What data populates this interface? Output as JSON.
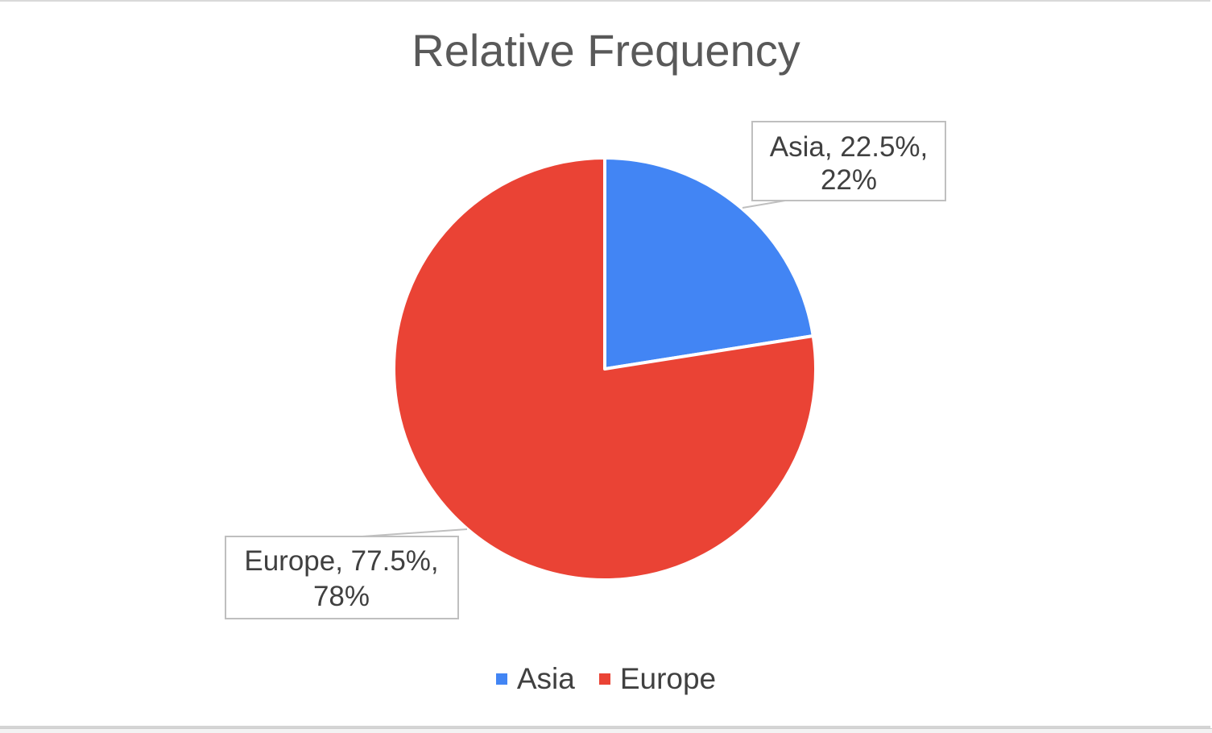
{
  "chart_data": {
    "type": "pie",
    "title": "Relative Frequency",
    "categories": [
      "Asia",
      "Europe"
    ],
    "values": [
      22.5,
      77.5
    ],
    "colors": [
      "#4285f4",
      "#ea4335"
    ],
    "data_labels": [
      [
        "Asia, 22.5%,",
        "22%"
      ],
      [
        "Europe, 77.5%,",
        "78%"
      ]
    ],
    "legend": {
      "position": "bottom",
      "items": [
        {
          "label": "Asia",
          "color": "#4285f4"
        },
        {
          "label": "Europe",
          "color": "#ea4335"
        }
      ]
    }
  }
}
